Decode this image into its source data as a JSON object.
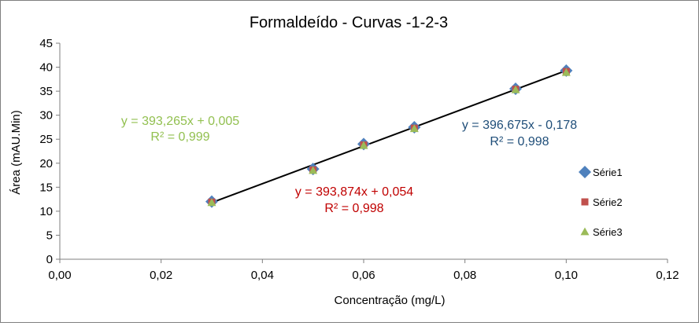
{
  "colors": {
    "serie1": "#4F81BD",
    "serie2": "#C0504D",
    "serie3": "#9BBB59",
    "trendline": "#000000",
    "axis": "#7f7f7f",
    "eq_serie1": "#1F4E79",
    "eq_serie2": "#C00000",
    "eq_serie3": "#92C050"
  },
  "chart_data": {
    "type": "scatter",
    "title": "Formaldeído - Curvas -1-2-3",
    "xlabel": "Concentração (mg/L)",
    "ylabel": "Área (mAU.Min)",
    "xlim": [
      0,
      0.12
    ],
    "ylim": [
      0,
      45
    ],
    "grid": false,
    "legend_position": "right",
    "x_tick_labels": [
      "0,00",
      "0,02",
      "0,04",
      "0,06",
      "0,08",
      "0,10",
      "0,12"
    ],
    "y_tick_labels": [
      "0",
      "5",
      "10",
      "15",
      "20",
      "25",
      "30",
      "35",
      "40",
      "45"
    ],
    "series": [
      {
        "name": "Série1",
        "marker": "diamond",
        "color_key": "serie1",
        "x": [
          0.03,
          0.05,
          0.06,
          0.07,
          0.09,
          0.1
        ],
        "y": [
          12.0,
          18.8,
          24.0,
          27.5,
          35.5,
          39.3
        ]
      },
      {
        "name": "Série2",
        "marker": "square",
        "color_key": "serie2",
        "x": [
          0.03,
          0.05,
          0.06,
          0.07,
          0.09,
          0.1
        ],
        "y": [
          11.9,
          18.6,
          23.8,
          27.3,
          35.4,
          39.1
        ]
      },
      {
        "name": "Série3",
        "marker": "triangle",
        "color_key": "serie3",
        "x": [
          0.03,
          0.05,
          0.06,
          0.07,
          0.09,
          0.1
        ],
        "y": [
          11.8,
          18.5,
          23.7,
          27.2,
          35.3,
          38.9
        ]
      }
    ],
    "trendline": {
      "x": [
        0.03,
        0.1
      ],
      "y": [
        11.8,
        39.3
      ]
    },
    "annotations": {
      "serie3_equation": "y = 393,265x + 0,005",
      "serie3_r2": "R² = 0,999",
      "serie2_equation": "y = 393,874x + 0,054",
      "serie2_r2": "R² = 0,998",
      "serie1_equation": "y = 396,675x - 0,178",
      "serie1_r2": "R² = 0,998"
    }
  }
}
